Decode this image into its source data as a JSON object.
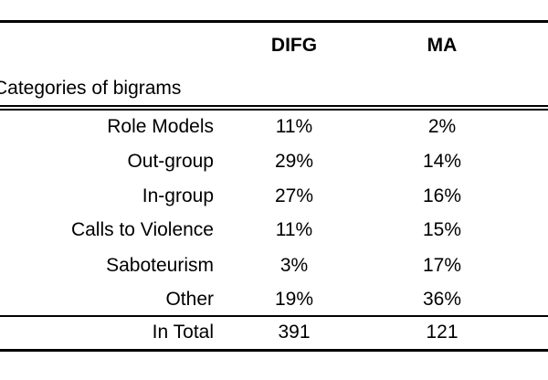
{
  "table": {
    "columns": [
      "DIFG",
      "MA"
    ],
    "row_header_label": "Categories of bigrams",
    "rows": [
      {
        "category": "Role Models",
        "difg": "11%",
        "ma": "2%"
      },
      {
        "category": "Out-group",
        "difg": "29%",
        "ma": "14%"
      },
      {
        "category": "In-group",
        "difg": "27%",
        "ma": "16%"
      },
      {
        "category": "Calls to Violence",
        "difg": "11%",
        "ma": "15%"
      },
      {
        "category": "Saboteurism",
        "difg": "3%",
        "ma": "17%"
      },
      {
        "category": "Other",
        "difg": "19%",
        "ma": "36%"
      }
    ],
    "total": {
      "category": "In Total",
      "difg": "391",
      "ma": "121"
    }
  }
}
